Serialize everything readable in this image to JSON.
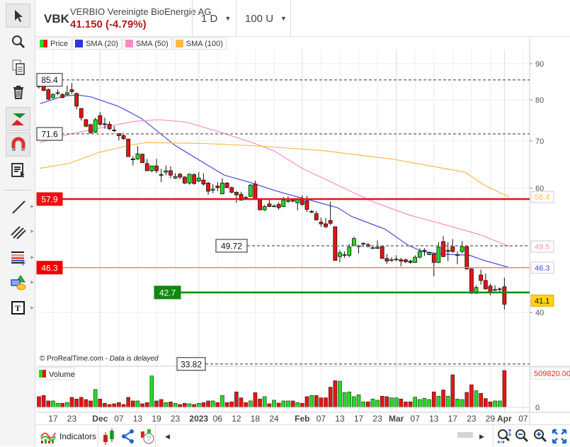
{
  "header": {
    "ticker": "VBK",
    "name": "VERBIO Vereinigte BioEnergie AG",
    "price": "41.150 (-4.79%)",
    "interval": "1 D",
    "units": "100 U"
  },
  "legend": [
    {
      "label": "Price",
      "color": "#e00000"
    },
    {
      "label": "SMA (20)",
      "color": "#3333dd"
    },
    {
      "label": "SMA (50)",
      "color": "#ff88c0"
    },
    {
      "label": "SMA (100)",
      "color": "#ffbb44"
    }
  ],
  "toolbar": [
    "pointer-icon",
    "zoom-icon",
    "copy-icon",
    "trash-icon",
    "buy-sell-icon",
    "magnet-icon",
    "order-list-icon",
    "line-icon",
    "parallel-lines-icon",
    "fibonacci-icon",
    "shapes-icon",
    "text-icon"
  ],
  "chart_data": {
    "type": "candlestick",
    "price_axis": {
      "ticks": [
        "90",
        "80",
        "70",
        "60",
        "40"
      ],
      "tick_values": [
        90,
        80,
        70,
        60,
        40
      ],
      "scale": "log"
    },
    "x_ticks": [
      {
        "label": "17",
        "index": 3
      },
      {
        "label": "23",
        "index": 7
      },
      {
        "label": "Dec",
        "index": 13,
        "bold": true
      },
      {
        "label": "07",
        "index": 17
      },
      {
        "label": "13",
        "index": 21
      },
      {
        "label": "19",
        "index": 25
      },
      {
        "label": "23",
        "index": 29
      },
      {
        "label": "2023",
        "index": 34,
        "bold": true
      },
      {
        "label": "06",
        "index": 38
      },
      {
        "label": "12",
        "index": 42
      },
      {
        "label": "18",
        "index": 46
      },
      {
        "label": "24",
        "index": 50
      },
      {
        "label": "Feb",
        "index": 56,
        "bold": true
      },
      {
        "label": "07",
        "index": 60
      },
      {
        "label": "13",
        "index": 64
      },
      {
        "label": "17",
        "index": 68
      },
      {
        "label": "23",
        "index": 72
      },
      {
        "label": "Mar",
        "index": 76,
        "bold": true
      },
      {
        "label": "07",
        "index": 80
      },
      {
        "label": "13",
        "index": 84
      },
      {
        "label": "17",
        "index": 88
      },
      {
        "label": "23",
        "index": 92
      },
      {
        "label": "29",
        "index": 96
      },
      {
        "label": "Apr",
        "index": 99,
        "bold": true
      },
      {
        "label": "07",
        "index": 103
      }
    ],
    "candles_ohlc": [
      [
        84.5,
        85.2,
        83,
        83.5
      ],
      [
        84,
        84.5,
        82.3,
        82.5
      ],
      [
        82.7,
        83,
        80,
        80.2
      ],
      [
        80.6,
        81.8,
        80.3,
        81.4
      ],
      [
        81.8,
        82.8,
        81.2,
        81.9
      ],
      [
        81.4,
        81.8,
        80.4,
        80.6
      ],
      [
        81.4,
        83.8,
        81.2,
        81.9
      ],
      [
        82.7,
        84.5,
        81.6,
        82.2
      ],
      [
        81.7,
        81.9,
        77.5,
        78.4
      ],
      [
        77.8,
        77.8,
        74.8,
        75.5
      ],
      [
        75,
        75.2,
        73.2,
        73.4
      ],
      [
        73.8,
        74,
        71.6,
        71.9
      ],
      [
        72,
        75.5,
        71.8,
        75
      ],
      [
        76,
        76.9,
        73.5,
        73.9
      ],
      [
        74,
        75.5,
        72.8,
        73.8
      ],
      [
        73.9,
        74.6,
        72.5,
        72.8
      ],
      [
        72.5,
        73.4,
        72,
        72.4
      ],
      [
        71.7,
        71.8,
        70.1,
        71.2
      ],
      [
        71.2,
        71.8,
        70.2,
        70.5
      ],
      [
        70.4,
        70.5,
        66.5,
        66.5
      ],
      [
        66,
        66.6,
        64.6,
        65.8
      ],
      [
        66,
        68.8,
        65.8,
        67.1
      ],
      [
        67,
        67.2,
        65.1,
        65.2
      ],
      [
        65,
        66,
        63.5,
        63.5
      ],
      [
        63.5,
        64.6,
        63.2,
        64.5
      ],
      [
        64.5,
        66,
        63,
        63.5
      ],
      [
        62.7,
        63.9,
        61.2,
        62.6
      ],
      [
        63.2,
        64.6,
        62.6,
        63.5
      ],
      [
        63.5,
        64.4,
        62,
        62.6
      ],
      [
        62,
        63,
        61.8,
        62.3
      ],
      [
        62.8,
        63,
        61.8,
        62.2
      ],
      [
        62.2,
        62.4,
        60.8,
        61
      ],
      [
        61,
        62.9,
        60.7,
        62.8
      ],
      [
        62.7,
        63,
        60.7,
        60.9
      ],
      [
        61.4,
        63.2,
        61.2,
        62
      ],
      [
        61.6,
        63,
        60.5,
        60.8
      ],
      [
        61,
        61.2,
        58.7,
        59.4
      ],
      [
        59.6,
        60.8,
        59,
        59.8
      ],
      [
        60.4,
        61.2,
        59.4,
        60.1
      ],
      [
        58.9,
        62,
        58.8,
        61
      ],
      [
        61,
        61.2,
        60,
        60.1
      ],
      [
        60.1,
        60.3,
        59,
        59.2
      ],
      [
        59.2,
        59.4,
        57.2,
        58.7
      ],
      [
        58.8,
        59.3,
        57.6,
        57.7
      ],
      [
        58.2,
        58.5,
        57.7,
        58.1
      ],
      [
        58.4,
        60.8,
        58.3,
        60.6
      ],
      [
        60.8,
        61.5,
        57.8,
        57.8
      ],
      [
        57.8,
        57.9,
        55.8,
        55.9
      ],
      [
        55.9,
        56.8,
        55.7,
        56.5
      ],
      [
        57,
        57.8,
        56.4,
        56.5
      ],
      [
        56.6,
        56.9,
        56.4,
        56.6
      ],
      [
        56.9,
        57.3,
        55.9,
        56.3
      ],
      [
        56.5,
        58.3,
        56.4,
        57.7
      ],
      [
        57.6,
        58.4,
        57.2,
        57.6
      ],
      [
        57.95,
        58.1,
        57.3,
        57.5
      ],
      [
        57.2,
        58.1,
        55.8,
        57.8
      ],
      [
        57.95,
        58.6,
        56.6,
        56.9
      ],
      [
        57.6,
        58.5,
        55.5,
        56
      ],
      [
        55.6,
        55.9,
        55.3,
        55.6
      ],
      [
        55.2,
        55.7,
        54,
        54.1
      ],
      [
        53.7,
        54.5,
        52.9,
        53.4
      ],
      [
        53.4,
        54.4,
        52.7,
        52.9
      ],
      [
        54,
        57.4,
        53.2,
        53.5
      ],
      [
        52.9,
        52.9,
        47.4,
        47.4
      ],
      [
        48,
        49,
        47.1,
        48.6
      ],
      [
        48.3,
        48.8,
        47.8,
        48.3
      ],
      [
        48.2,
        50,
        47.9,
        49.5
      ],
      [
        49.8,
        51.2,
        49.7,
        50.9
      ],
      [
        49.7,
        49.9,
        48.5,
        49.7
      ],
      [
        50.1,
        50.3,
        49.5,
        50.1
      ],
      [
        49.9,
        50.2,
        49.5,
        49.6
      ],
      [
        49.4,
        49.6,
        49.2,
        49.4
      ],
      [
        49.3,
        50.6,
        49.2,
        49.5
      ],
      [
        49.6,
        49.7,
        47.7,
        47.7
      ],
      [
        47.7,
        48.4,
        46.9,
        47.3
      ],
      [
        47.5,
        47.9,
        47.2,
        47.5
      ],
      [
        47.6,
        48.2,
        47.3,
        47.6
      ],
      [
        47.5,
        47.8,
        46.5,
        47.3
      ],
      [
        47.5,
        47.7,
        47,
        47.2
      ],
      [
        47.3,
        47.5,
        46.9,
        47.1
      ],
      [
        47.1,
        48.2,
        47,
        47.9
      ],
      [
        47.9,
        49.3,
        47.7,
        48.8
      ],
      [
        49,
        49.3,
        48.1,
        49
      ],
      [
        48.3,
        48.8,
        48.2,
        48.6
      ],
      [
        48.4,
        48.6,
        45,
        47.1
      ],
      [
        47.1,
        50.3,
        47,
        49.5
      ],
      [
        50.4,
        51.3,
        47.9,
        48
      ],
      [
        48.8,
        50.3,
        47.3,
        49
      ],
      [
        49.6,
        50.8,
        48.6,
        48.8
      ],
      [
        48.3,
        48.8,
        46.8,
        48.3
      ],
      [
        48.8,
        50.5,
        48.5,
        49.6
      ],
      [
        49.6,
        49.7,
        46,
        46.1
      ],
      [
        46.1,
        46.2,
        42.5,
        42.6
      ],
      [
        42.6,
        43.7,
        42.5,
        43.4
      ],
      [
        45.2,
        46,
        43.8,
        44.4
      ],
      [
        44.4,
        45.4,
        43.1,
        43.2
      ],
      [
        43.6,
        43.9,
        42.3,
        42.7
      ],
      [
        43.1,
        43.7,
        42.9,
        43.1
      ],
      [
        43.2,
        43.4,
        42.8,
        43.2
      ],
      [
        43.5,
        44.8,
        40.4,
        41.1
      ]
    ],
    "volume": {
      "label": "Volume",
      "max_label": "509820.00",
      "zero_label": "0",
      "max": 509820,
      "values": [
        148000,
        164450,
        88800,
        88800,
        55900,
        55900,
        65800,
        138100,
        115100,
        138100,
        108500,
        88800,
        246700,
        115100,
        55900,
        39500,
        49300,
        65800,
        39500,
        138100,
        88800,
        88800,
        49300,
        65800,
        434100,
        88800,
        108500,
        65800,
        75600,
        55900,
        39500,
        55900,
        49300,
        39500,
        55900,
        65800,
        88800,
        88800,
        65800,
        164450,
        65800,
        75600,
        213800,
        131600,
        65800,
        88800,
        203900,
        115100,
        148000,
        49300,
        98700,
        59200,
        88800,
        88800,
        88800,
        65800,
        55900,
        148000,
        164450,
        164450,
        131600,
        131600,
        279600,
        368400,
        361800,
        203900,
        213800,
        148000,
        174300,
        75600,
        75600,
        115100,
        98700,
        154600,
        148000,
        131600,
        131600,
        115100,
        75600,
        75600,
        141400,
        108500,
        125000,
        108500,
        213800,
        154600,
        240100,
        154600,
        450600,
        115100,
        108500,
        207200,
        312500,
        230200,
        194100,
        121700,
        75600,
        88800,
        88800,
        509820
      ]
    },
    "sma": [
      {
        "name": "SMA (20)",
        "color": "#4a4ae0",
        "last_label": "46.3",
        "points": [
          [
            0.2,
            79.0
          ],
          [
            5.2,
            81.0
          ],
          [
            8.2,
            81.3
          ],
          [
            11,
            80.8
          ],
          [
            16.8,
            78.4
          ],
          [
            17.8,
            77.8
          ],
          [
            21.8,
            75.3
          ],
          [
            28.9,
            69.0
          ],
          [
            35.3,
            65.0
          ],
          [
            39.4,
            62.6
          ],
          [
            45.4,
            61.0
          ],
          [
            49.9,
            59.6
          ],
          [
            53.4,
            58.7
          ],
          [
            58.5,
            57.5
          ],
          [
            63.5,
            56.3
          ],
          [
            66.5,
            54.7
          ],
          [
            73.6,
            52.5
          ],
          [
            78.5,
            49.8
          ],
          [
            81.6,
            48.8
          ],
          [
            85.6,
            48.4
          ],
          [
            91.6,
            48.2
          ],
          [
            94.7,
            47.4
          ],
          [
            100.1,
            46.3
          ]
        ]
      },
      {
        "name": "SMA (50)",
        "color": "#ff8cc6",
        "last_label": "49.5",
        "points": [
          [
            0.2,
            69.6
          ],
          [
            6.3,
            71.5
          ],
          [
            15.3,
            73.5
          ],
          [
            20.3,
            74.6
          ],
          [
            25.4,
            75.0
          ],
          [
            31.4,
            74.4
          ],
          [
            38.3,
            72.1
          ],
          [
            45.4,
            69.6
          ],
          [
            49.9,
            67.8
          ],
          [
            56,
            64.0
          ],
          [
            63.5,
            60.6
          ],
          [
            71,
            57.4
          ],
          [
            78.6,
            55.0
          ],
          [
            86.1,
            53.3
          ],
          [
            93.6,
            51.6
          ],
          [
            100.1,
            49.6
          ]
        ]
      },
      {
        "name": "SMA (100)",
        "color": "#ffbb44",
        "last_label": "58.4",
        "points": [
          [
            0.2,
            64.0
          ],
          [
            6.3,
            65.0
          ],
          [
            12.7,
            67.4
          ],
          [
            19.4,
            69.0
          ],
          [
            22.8,
            69.6
          ],
          [
            35.3,
            69.4
          ],
          [
            45.4,
            68.9
          ],
          [
            49.9,
            68.6
          ],
          [
            60.5,
            67.8
          ],
          [
            75.5,
            65.9
          ],
          [
            90.6,
            63.2
          ],
          [
            95.1,
            60.4
          ],
          [
            100,
            58.3
          ]
        ]
      }
    ],
    "levels": [
      {
        "value": 85.4,
        "label": "85.4",
        "style": "dashed",
        "color": "#777777",
        "label_pos": "left"
      },
      {
        "value": 71.6,
        "label": "71.6",
        "style": "dashed",
        "color": "#777777",
        "label_pos": "left"
      },
      {
        "value": 57.9,
        "label": "57.9",
        "style": "solid",
        "color": "#ee1111",
        "label_pos": "left"
      },
      {
        "value": 49.72,
        "label": "49.72",
        "style": "dashed",
        "color": "#777777",
        "label_pos": "mid"
      },
      {
        "value": 46.3,
        "label": "46.3",
        "style": "solid",
        "color": "#ff7f7f",
        "label_pos": "left"
      },
      {
        "value": 42.7,
        "label": "42.7",
        "style": "solid",
        "color": "#118811",
        "label_pos": "mid2"
      },
      {
        "value": 33.82,
        "label": "33.82",
        "style": "dashed",
        "color": "#777777",
        "label_pos": "left"
      }
    ],
    "last_price_label": "41.1",
    "copyright": "© ProRealTime.com - ",
    "delayed": "Data is delayed"
  },
  "bottom": {
    "indicators": "Indicators"
  }
}
